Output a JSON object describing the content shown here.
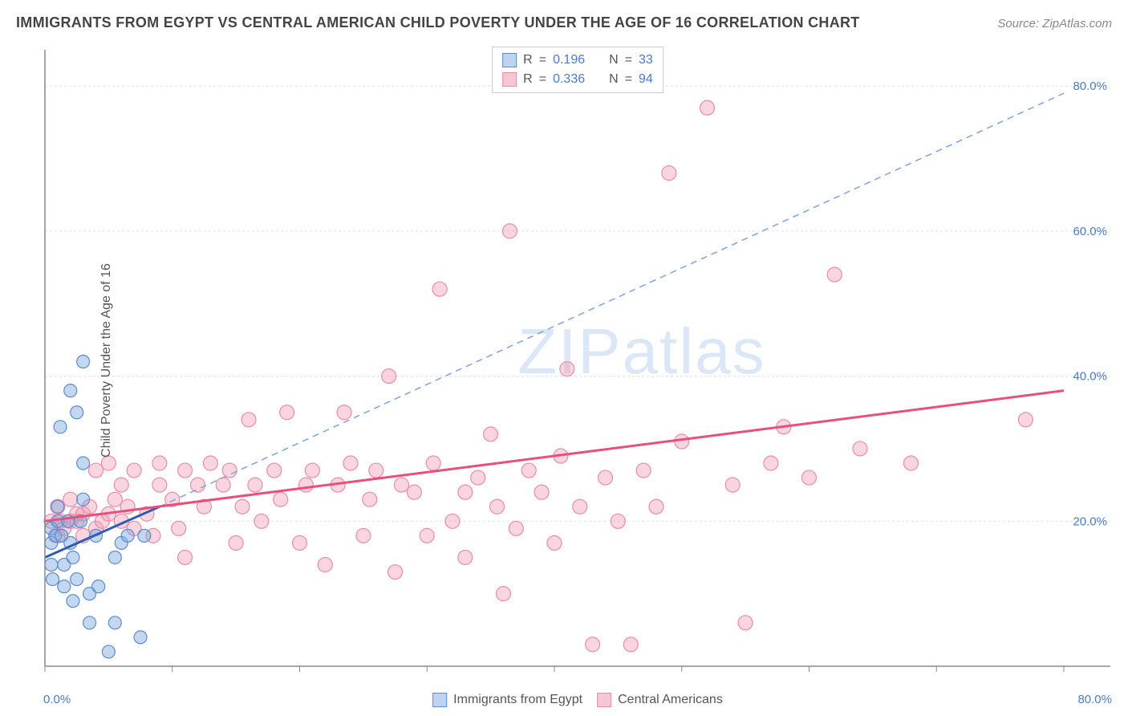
{
  "header": {
    "title": "IMMIGRANTS FROM EGYPT VS CENTRAL AMERICAN CHILD POVERTY UNDER THE AGE OF 16 CORRELATION CHART",
    "source_prefix": "Source: ",
    "source": "ZipAtlas.com"
  },
  "chart": {
    "type": "scatter",
    "y_axis_label": "Child Poverty Under the Age of 16",
    "watermark": "ZIPatlas",
    "background_color": "#ffffff",
    "grid_color": "#e0e0e0",
    "axis_color": "#888888",
    "tick_label_color": "#4a7bc8",
    "xlim": [
      0,
      80
    ],
    "ylim": [
      0,
      85
    ],
    "x_ticks": [
      0,
      10,
      20,
      30,
      40,
      50,
      60,
      70,
      80
    ],
    "y_ticks": [
      20,
      40,
      60,
      80
    ],
    "y_tick_labels": [
      "20.0%",
      "40.0%",
      "60.0%",
      "80.0%"
    ],
    "x_origin_label": "0.0%",
    "x_max_label": "80.0%",
    "series": [
      {
        "name": "Immigrants from Egypt",
        "marker_fill": "rgba(122,166,224,0.45)",
        "marker_stroke": "#5a8cd0",
        "marker_radius": 8,
        "legend_swatch_fill": "#bdd4f0",
        "legend_swatch_border": "#5a8cd0",
        "R": "0.196",
        "N": "33",
        "trend_solid": {
          "x1": 0,
          "y1": 15,
          "x2": 9,
          "y2": 22,
          "color": "#2c5fb3"
        },
        "trend_dash": {
          "x1": 9,
          "y1": 22,
          "x2": 80,
          "y2": 79,
          "color": "#7ba3e0"
        },
        "points": [
          [
            0.5,
            14
          ],
          [
            0.5,
            17
          ],
          [
            0.5,
            19
          ],
          [
            0.6,
            12
          ],
          [
            0.8,
            18
          ],
          [
            1.0,
            20
          ],
          [
            1.0,
            22
          ],
          [
            1.2,
            33
          ],
          [
            1.3,
            18
          ],
          [
            1.5,
            11
          ],
          [
            1.5,
            14
          ],
          [
            1.8,
            20
          ],
          [
            2.0,
            17
          ],
          [
            2.0,
            38
          ],
          [
            2.2,
            9
          ],
          [
            2.2,
            15
          ],
          [
            2.5,
            12
          ],
          [
            2.5,
            35
          ],
          [
            2.8,
            20
          ],
          [
            3.0,
            23
          ],
          [
            3.0,
            28
          ],
          [
            3.0,
            42
          ],
          [
            3.5,
            6
          ],
          [
            3.5,
            10
          ],
          [
            4.0,
            18
          ],
          [
            4.2,
            11
          ],
          [
            5.0,
            2
          ],
          [
            5.5,
            6
          ],
          [
            5.5,
            15
          ],
          [
            6.0,
            17
          ],
          [
            6.5,
            18
          ],
          [
            7.5,
            4
          ],
          [
            7.8,
            18
          ]
        ]
      },
      {
        "name": "Central Americans",
        "marker_fill": "rgba(240,150,175,0.40)",
        "marker_stroke": "#e88ca8",
        "marker_radius": 9,
        "legend_swatch_fill": "#f5c6d4",
        "legend_swatch_border": "#e88ca8",
        "R": "0.336",
        "N": "94",
        "trend_solid": {
          "x1": 0,
          "y1": 20,
          "x2": 80,
          "y2": 38,
          "color": "#e8507a"
        },
        "points": [
          [
            0.5,
            20
          ],
          [
            1.0,
            18
          ],
          [
            1.0,
            22
          ],
          [
            1.2,
            20
          ],
          [
            1.5,
            19
          ],
          [
            2.0,
            20
          ],
          [
            2.0,
            23
          ],
          [
            2.5,
            20
          ],
          [
            2.5,
            21
          ],
          [
            3.0,
            18
          ],
          [
            3.0,
            21
          ],
          [
            3.5,
            22
          ],
          [
            4.0,
            19
          ],
          [
            4.0,
            27
          ],
          [
            4.5,
            20
          ],
          [
            5.0,
            21
          ],
          [
            5.0,
            28
          ],
          [
            5.5,
            23
          ],
          [
            6.0,
            20
          ],
          [
            6.0,
            25
          ],
          [
            6.5,
            22
          ],
          [
            7.0,
            19
          ],
          [
            7.0,
            27
          ],
          [
            8.0,
            21
          ],
          [
            8.5,
            18
          ],
          [
            9.0,
            25
          ],
          [
            9.0,
            28
          ],
          [
            10.0,
            23
          ],
          [
            10.5,
            19
          ],
          [
            11.0,
            27
          ],
          [
            11.0,
            15
          ],
          [
            12.0,
            25
          ],
          [
            12.5,
            22
          ],
          [
            13.0,
            28
          ],
          [
            14.0,
            25
          ],
          [
            14.5,
            27
          ],
          [
            15.0,
            17
          ],
          [
            15.5,
            22
          ],
          [
            16.0,
            34
          ],
          [
            16.5,
            25
          ],
          [
            17.0,
            20
          ],
          [
            18.0,
            27
          ],
          [
            18.5,
            23
          ],
          [
            19.0,
            35
          ],
          [
            20.0,
            17
          ],
          [
            20.5,
            25
          ],
          [
            21.0,
            27
          ],
          [
            22.0,
            14
          ],
          [
            23.0,
            25
          ],
          [
            23.5,
            35
          ],
          [
            24.0,
            28
          ],
          [
            25.0,
            18
          ],
          [
            25.5,
            23
          ],
          [
            26.0,
            27
          ],
          [
            27.0,
            40
          ],
          [
            27.5,
            13
          ],
          [
            28.0,
            25
          ],
          [
            29.0,
            24
          ],
          [
            30.0,
            18
          ],
          [
            30.5,
            28
          ],
          [
            31.0,
            52
          ],
          [
            32.0,
            20
          ],
          [
            33.0,
            15
          ],
          [
            33.0,
            24
          ],
          [
            34.0,
            26
          ],
          [
            35.0,
            32
          ],
          [
            35.5,
            22
          ],
          [
            36.0,
            10
          ],
          [
            36.5,
            60
          ],
          [
            37.0,
            19
          ],
          [
            38.0,
            27
          ],
          [
            39.0,
            24
          ],
          [
            40.0,
            17
          ],
          [
            40.5,
            29
          ],
          [
            41.0,
            41
          ],
          [
            42.0,
            22
          ],
          [
            43.0,
            3
          ],
          [
            44.0,
            26
          ],
          [
            45.0,
            20
          ],
          [
            46.0,
            3
          ],
          [
            47.0,
            27
          ],
          [
            48.0,
            22
          ],
          [
            49.0,
            68
          ],
          [
            50.0,
            31
          ],
          [
            52.0,
            77
          ],
          [
            54.0,
            25
          ],
          [
            55.0,
            6
          ],
          [
            57.0,
            28
          ],
          [
            58.0,
            33
          ],
          [
            60.0,
            26
          ],
          [
            62.0,
            54
          ],
          [
            64.0,
            30
          ],
          [
            68.0,
            28
          ],
          [
            77.0,
            34
          ]
        ]
      }
    ],
    "legend_top": {
      "r_label": "R",
      "n_label": "N",
      "equals": "="
    },
    "bottom_legend": [
      {
        "label": "Immigrants from Egypt",
        "fill": "#bdd4f0",
        "border": "#5a8cd0"
      },
      {
        "label": "Central Americans",
        "fill": "#f5c6d4",
        "border": "#e88ca8"
      }
    ]
  }
}
